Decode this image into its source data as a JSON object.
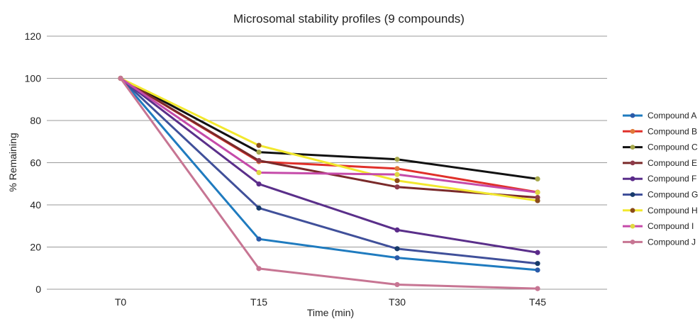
{
  "chart_data": {
    "type": "line",
    "title": "Microsomal stability profiles (9 compounds)",
    "xlabel": "Time (min)",
    "ylabel": "% Remaining",
    "categories": [
      "T0",
      "T15",
      "T30",
      "T45"
    ],
    "ylim": [
      0,
      120
    ],
    "yticks": [
      0,
      20,
      40,
      60,
      80,
      100,
      120
    ],
    "grid": "horizontal",
    "legend": "right",
    "series": [
      {
        "name": "Compound A",
        "values": [
          100,
          23.8,
          14.9,
          9.1
        ],
        "color": "#1f7bbf",
        "marker": "#2b5aa8"
      },
      {
        "name": "Compound B",
        "values": [
          100,
          60.5,
          57.2,
          46.0
        ],
        "color": "#e0302a",
        "marker": "#e07a3a"
      },
      {
        "name": "Compound C",
        "values": [
          100,
          65.0,
          61.6,
          52.3
        ],
        "color": "#111111",
        "marker": "#a6a84a"
      },
      {
        "name": "Compound E",
        "values": [
          100,
          61.0,
          48.5,
          43.5
        ],
        "color": "#7a2a2a",
        "marker": "#8e3a4a"
      },
      {
        "name": "Compound F",
        "values": [
          100,
          49.9,
          28.1,
          17.4
        ],
        "color": "#5a2f8a",
        "marker": "#5b2a8a"
      },
      {
        "name": "Compound G",
        "values": [
          100,
          38.5,
          19.2,
          12.2
        ],
        "color": "#40509a",
        "marker": "#163a6a"
      },
      {
        "name": "Compound H",
        "values": [
          100,
          68.2,
          51.5,
          42.0
        ],
        "color": "#f2e82e",
        "marker": "#8a4a1a"
      },
      {
        "name": "Compound  I",
        "values": [
          100,
          55.3,
          54.4,
          45.9
        ],
        "color": "#c54aa9",
        "marker": "#e0d840"
      },
      {
        "name": "Compound J",
        "values": [
          100,
          9.8,
          2.2,
          0.3
        ],
        "color": "#c77593",
        "marker": "#c77593"
      }
    ]
  }
}
